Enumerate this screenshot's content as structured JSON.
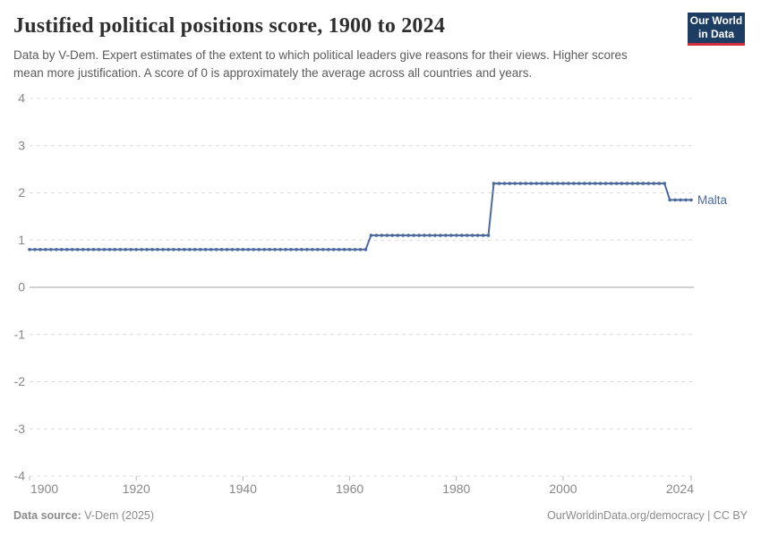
{
  "header": {
    "title": "Justified political positions score, 1900 to 2024",
    "subtitle": "Data by V-Dem. Expert estimates of the extent to which political leaders give reasons for their views. Higher scores mean more justification. A score of 0 is approximately the average across all countries and years.",
    "logo": {
      "line1": "Our World",
      "line2": "in Data",
      "bg_color": "#1d3d63",
      "accent_color": "#d22d3c"
    }
  },
  "chart_data": {
    "type": "line",
    "title": "Justified political positions score, 1900 to 2024",
    "xlabel": "",
    "ylabel": "",
    "ylim": [
      -4,
      4
    ],
    "xlim": [
      1900,
      2024
    ],
    "yticks": [
      4,
      3,
      2,
      1,
      0,
      -1,
      -2,
      -3,
      -4
    ],
    "xticks": [
      1900,
      1920,
      1940,
      1960,
      1980,
      2000,
      2024
    ],
    "grid": "dashed horizontal gridlines, solid zero line",
    "legend_position": "end-of-line label",
    "marker": "dot per year",
    "series": [
      {
        "name": "Malta",
        "color": "#4c6aa0",
        "year_start": 1900,
        "year_end": 2024,
        "segments": [
          {
            "start_year": 1900,
            "end_year": 1963,
            "value": 0.8
          },
          {
            "start_year": 1964,
            "end_year": 1986,
            "value": 1.1
          },
          {
            "start_year": 1987,
            "end_year": 2019,
            "value": 2.2
          },
          {
            "start_year": 2020,
            "end_year": 2024,
            "value": 1.85
          }
        ],
        "values": [
          0.8,
          0.8,
          0.8,
          0.8,
          0.8,
          0.8,
          0.8,
          0.8,
          0.8,
          0.8,
          0.8,
          0.8,
          0.8,
          0.8,
          0.8,
          0.8,
          0.8,
          0.8,
          0.8,
          0.8,
          0.8,
          0.8,
          0.8,
          0.8,
          0.8,
          0.8,
          0.8,
          0.8,
          0.8,
          0.8,
          0.8,
          0.8,
          0.8,
          0.8,
          0.8,
          0.8,
          0.8,
          0.8,
          0.8,
          0.8,
          0.8,
          0.8,
          0.8,
          0.8,
          0.8,
          0.8,
          0.8,
          0.8,
          0.8,
          0.8,
          0.8,
          0.8,
          0.8,
          0.8,
          0.8,
          0.8,
          0.8,
          0.8,
          0.8,
          0.8,
          0.8,
          0.8,
          0.8,
          0.8,
          1.1,
          1.1,
          1.1,
          1.1,
          1.1,
          1.1,
          1.1,
          1.1,
          1.1,
          1.1,
          1.1,
          1.1,
          1.1,
          1.1,
          1.1,
          1.1,
          1.1,
          1.1,
          1.1,
          1.1,
          1.1,
          1.1,
          1.1,
          2.2,
          2.2,
          2.2,
          2.2,
          2.2,
          2.2,
          2.2,
          2.2,
          2.2,
          2.2,
          2.2,
          2.2,
          2.2,
          2.2,
          2.2,
          2.2,
          2.2,
          2.2,
          2.2,
          2.2,
          2.2,
          2.2,
          2.2,
          2.2,
          2.2,
          2.2,
          2.2,
          2.2,
          2.2,
          2.2,
          2.2,
          2.2,
          2.2,
          1.85,
          1.85,
          1.85,
          1.85,
          1.85
        ]
      }
    ],
    "end_label": "Malta"
  },
  "footer": {
    "source_label": "Data source:",
    "source_value": " V-Dem (2025)",
    "right_text": "OurWorldinData.org/democracy | CC BY"
  },
  "colors": {
    "line": "#4c6aa0",
    "gridline": "#dcdcdc",
    "zero_line": "#a3a3a3",
    "axis_label": "#878787",
    "tick_mark": "#b8b8b8",
    "title": "#2f2f2f",
    "subtitle": "#5b5b5b",
    "footer": "#8b8b8b"
  }
}
